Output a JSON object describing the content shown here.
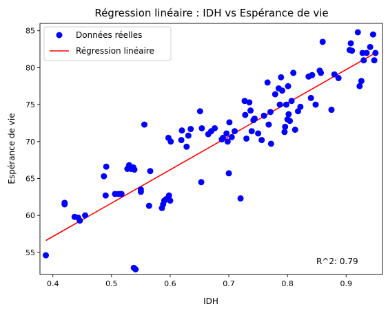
{
  "chart_data": {
    "type": "scatter",
    "title": "Régression linéaire : IDH vs Espérance de vie",
    "xlabel": "IDH",
    "ylabel": "Espérance de vie",
    "xlim": [
      0.378,
      0.962
    ],
    "ylim": [
      52.0,
      86.0
    ],
    "xticks": [
      "0.4",
      "0.5",
      "0.6",
      "0.7",
      "0.8",
      "0.9"
    ],
    "yticks": [
      "55",
      "60",
      "65",
      "70",
      "75",
      "80",
      "85"
    ],
    "legend_position": "top-left",
    "annotation": "R^2: 0.79",
    "colors": {
      "points": "#0000ff",
      "line": "#ff0000"
    },
    "series": [
      {
        "name": "Données réelles",
        "kind": "scatter",
        "points": [
          [
            0.388,
            54.6
          ],
          [
            0.42,
            61.7
          ],
          [
            0.42,
            61.5
          ],
          [
            0.437,
            59.8
          ],
          [
            0.443,
            59.7
          ],
          [
            0.446,
            59.3
          ],
          [
            0.455,
            60.0
          ],
          [
            0.487,
            65.3
          ],
          [
            0.49,
            62.7
          ],
          [
            0.491,
            66.6
          ],
          [
            0.506,
            62.9
          ],
          [
            0.512,
            62.9
          ],
          [
            0.517,
            62.9
          ],
          [
            0.527,
            66.3
          ],
          [
            0.53,
            66.8
          ],
          [
            0.533,
            66.3
          ],
          [
            0.537,
            66.5
          ],
          [
            0.539,
            66.2
          ],
          [
            0.535,
            66.4
          ],
          [
            0.538,
            52.9
          ],
          [
            0.541,
            52.7
          ],
          [
            0.55,
            63.5
          ],
          [
            0.55,
            63.2
          ],
          [
            0.556,
            72.3
          ],
          [
            0.564,
            61.3
          ],
          [
            0.566,
            66.0
          ],
          [
            0.586,
            61.0
          ],
          [
            0.588,
            61.5
          ],
          [
            0.59,
            62.0
          ],
          [
            0.593,
            62.2
          ],
          [
            0.597,
            70.5
          ],
          [
            0.598,
            62.7
          ],
          [
            0.6,
            62.0
          ],
          [
            0.601,
            70.0
          ],
          [
            0.619,
            70.2
          ],
          [
            0.62,
            71.5
          ],
          [
            0.628,
            69.3
          ],
          [
            0.631,
            70.8
          ],
          [
            0.635,
            71.7
          ],
          [
            0.651,
            74.1
          ],
          [
            0.653,
            64.5
          ],
          [
            0.654,
            71.8
          ],
          [
            0.665,
            71.0
          ],
          [
            0.67,
            71.4
          ],
          [
            0.676,
            71.8
          ],
          [
            0.688,
            70.3
          ],
          [
            0.69,
            70.5
          ],
          [
            0.696,
            71.1
          ],
          [
            0.698,
            70.0
          ],
          [
            0.7,
            65.7
          ],
          [
            0.701,
            72.6
          ],
          [
            0.705,
            70.6
          ],
          [
            0.71,
            71.4
          ],
          [
            0.72,
            62.3
          ],
          [
            0.727,
            75.5
          ],
          [
            0.728,
            73.6
          ],
          [
            0.73,
            70.4
          ],
          [
            0.735,
            75.3
          ],
          [
            0.737,
            74.2
          ],
          [
            0.739,
            71.4
          ],
          [
            0.742,
            72.9
          ],
          [
            0.744,
            73.1
          ],
          [
            0.75,
            71.1
          ],
          [
            0.756,
            70.2
          ],
          [
            0.76,
            73.5
          ],
          [
            0.766,
            78.0
          ],
          [
            0.768,
            72.3
          ],
          [
            0.771,
            74.0
          ],
          [
            0.772,
            69.7
          ],
          [
            0.779,
            76.4
          ],
          [
            0.785,
            77.2
          ],
          [
            0.787,
            75.0
          ],
          [
            0.789,
            78.7
          ],
          [
            0.791,
            76.9
          ],
          [
            0.795,
            71.3
          ],
          [
            0.796,
            72.0
          ],
          [
            0.798,
            75.0
          ],
          [
            0.8,
            73.0
          ],
          [
            0.801,
            77.5
          ],
          [
            0.802,
            73.7
          ],
          [
            0.804,
            72.8
          ],
          [
            0.807,
            75.5
          ],
          [
            0.81,
            79.3
          ],
          [
            0.813,
            71.6
          ],
          [
            0.818,
            74.1
          ],
          [
            0.822,
            74.7
          ],
          [
            0.836,
            78.8
          ],
          [
            0.84,
            75.9
          ],
          [
            0.842,
            79.0
          ],
          [
            0.848,
            75.0
          ],
          [
            0.855,
            79.6
          ],
          [
            0.857,
            79.3
          ],
          [
            0.86,
            83.5
          ],
          [
            0.875,
            74.3
          ],
          [
            0.88,
            79.1
          ],
          [
            0.887,
            78.6
          ],
          [
            0.906,
            82.4
          ],
          [
            0.908,
            83.3
          ],
          [
            0.91,
            82.3
          ],
          [
            0.92,
            84.8
          ],
          [
            0.923,
            77.5
          ],
          [
            0.926,
            78.2
          ],
          [
            0.928,
            82.0
          ],
          [
            0.93,
            81.0
          ],
          [
            0.935,
            82.0
          ],
          [
            0.941,
            82.8
          ],
          [
            0.946,
            84.5
          ],
          [
            0.948,
            81.0
          ],
          [
            0.95,
            82.0
          ]
        ]
      },
      {
        "name": "Régression linéaire",
        "kind": "line",
        "points": [
          [
            0.388,
            56.6
          ],
          [
            0.95,
            82.0
          ]
        ]
      }
    ]
  }
}
